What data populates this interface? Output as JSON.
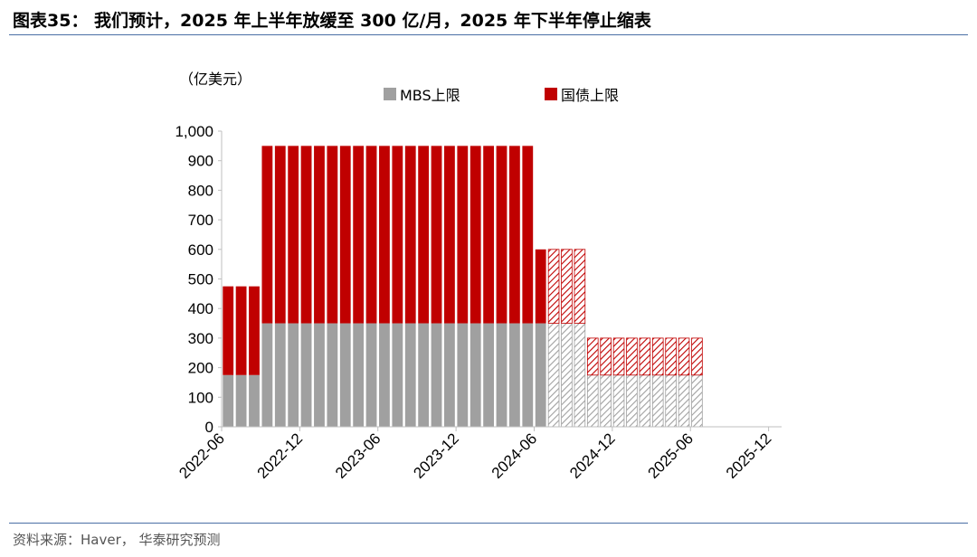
{
  "header": {
    "title": "图表35： 我们预计，2025 年上半年放缓至 300 亿/月，2025 年下半年停止缩表"
  },
  "footer": {
    "source": "资料来源：Haver， 华泰研究预测"
  },
  "colors": {
    "mbs": "#a0a0a0",
    "treasury": "#c00000",
    "rule": "#4a6fa5"
  },
  "chart_data": {
    "type": "bar",
    "stacked": true,
    "unit_label": "（亿美元）",
    "ylim": [
      0,
      1000
    ],
    "y_ticks": [
      "0",
      "100",
      "200",
      "300",
      "400",
      "500",
      "600",
      "700",
      "800",
      "900",
      "1,000"
    ],
    "x_tick_labels": [
      "2022-06",
      "2022-12",
      "2023-06",
      "2023-12",
      "2024-06",
      "2024-12",
      "2025-06",
      "2025-12"
    ],
    "legend_position": "top",
    "categories": [
      "2022-06",
      "2022-07",
      "2022-08",
      "2022-09",
      "2022-10",
      "2022-11",
      "2022-12",
      "2023-01",
      "2023-02",
      "2023-03",
      "2023-04",
      "2023-05",
      "2023-06",
      "2023-07",
      "2023-08",
      "2023-09",
      "2023-10",
      "2023-11",
      "2023-12",
      "2024-01",
      "2024-02",
      "2024-03",
      "2024-04",
      "2024-05",
      "2024-06",
      "2024-07",
      "2024-08",
      "2024-09",
      "2024-10",
      "2024-11",
      "2024-12",
      "2025-01",
      "2025-02",
      "2025-03",
      "2025-04",
      "2025-05",
      "2025-06",
      "2025-07",
      "2025-08",
      "2025-09",
      "2025-10",
      "2025-11",
      "2025-12"
    ],
    "series": [
      {
        "name": "MBS上限",
        "values": [
          175,
          175,
          175,
          350,
          350,
          350,
          350,
          350,
          350,
          350,
          350,
          350,
          350,
          350,
          350,
          350,
          350,
          350,
          350,
          350,
          350,
          350,
          350,
          350,
          350,
          350,
          350,
          350,
          175,
          175,
          175,
          175,
          175,
          175,
          175,
          175,
          175,
          0,
          0,
          0,
          0,
          0,
          0
        ]
      },
      {
        "name": "国债上限",
        "values": [
          300,
          300,
          300,
          600,
          600,
          600,
          600,
          600,
          600,
          600,
          600,
          600,
          600,
          600,
          600,
          600,
          600,
          600,
          600,
          600,
          600,
          600,
          600,
          600,
          250,
          250,
          250,
          250,
          125,
          125,
          125,
          125,
          125,
          125,
          125,
          125,
          125,
          0,
          0,
          0,
          0,
          0,
          0
        ]
      }
    ],
    "forecast_from": "2024-06"
  }
}
